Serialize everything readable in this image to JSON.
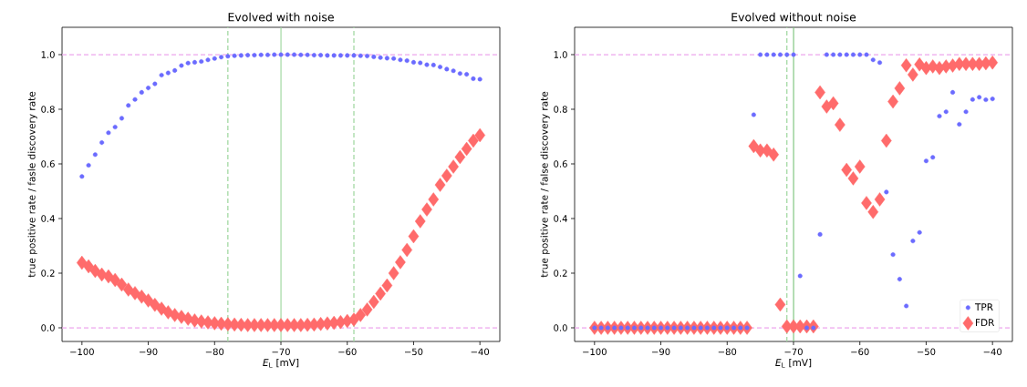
{
  "chart_data": [
    {
      "type": "scatter",
      "title": "Evolved with noise",
      "xlabel": "*E*$_{L}$ [mV]",
      "ylabel": "true positive rate / fasle discovery rate",
      "x": [
        -100,
        -99,
        -98,
        -97,
        -96,
        -95,
        -94,
        -93,
        -92,
        -91,
        -90,
        -89,
        -88,
        -87,
        -86,
        -85,
        -84,
        -83,
        -82,
        -81,
        -80,
        -79,
        -78,
        -77,
        -76,
        -75,
        -74,
        -73,
        -72,
        -71,
        -70,
        -69,
        -68,
        -67,
        -66,
        -65,
        -64,
        -63,
        -62,
        -61,
        -60,
        -59,
        -58,
        -57,
        -56,
        -55,
        -54,
        -53,
        -52,
        -51,
        -50,
        -49,
        -48,
        -47,
        -46,
        -45,
        -44,
        -43,
        -42,
        -41,
        -40
      ],
      "series": [
        {
          "color": "#6b6bff",
          "marker": "circle",
          "values": [
            0.554,
            0.595,
            0.634,
            0.678,
            0.714,
            0.735,
            0.767,
            0.814,
            0.836,
            0.862,
            0.878,
            0.893,
            0.925,
            0.933,
            0.942,
            0.96,
            0.969,
            0.972,
            0.975,
            0.981,
            0.986,
            0.991,
            0.994,
            0.996,
            0.997,
            0.998,
            0.998,
            0.999,
            0.999,
            1,
            1,
            1,
            1,
            0.999,
            0.999,
            0.998,
            0.998,
            0.997,
            0.997,
            0.997,
            0.997,
            0.997,
            0.996,
            0.995,
            0.992,
            0.989,
            0.987,
            0.986,
            0.981,
            0.978,
            0.972,
            0.97,
            0.963,
            0.962,
            0.955,
            0.947,
            0.941,
            0.931,
            0.928,
            0.912,
            0.91
          ]
        },
        {
          "color": "#ff6b6b",
          "marker": "diamond",
          "values": [
            0.238,
            0.225,
            0.208,
            0.195,
            0.188,
            0.175,
            0.158,
            0.14,
            0.127,
            0.114,
            0.1,
            0.084,
            0.07,
            0.057,
            0.047,
            0.04,
            0.033,
            0.027,
            0.023,
            0.02,
            0.017,
            0.015,
            0.013,
            0.012,
            0.011,
            0.01,
            0.01,
            0.01,
            0.01,
            0.01,
            0.01,
            0.01,
            0.01,
            0.01,
            0.011,
            0.012,
            0.014,
            0.016,
            0.018,
            0.021,
            0.025,
            0.03,
            0.047,
            0.067,
            0.095,
            0.125,
            0.155,
            0.2,
            0.24,
            0.285,
            0.335,
            0.39,
            0.433,
            0.47,
            0.523,
            0.557,
            0.59,
            0.625,
            0.655,
            0.685,
            0.705
          ]
        }
      ],
      "xlim": [
        -103,
        -37
      ],
      "ylim": [
        -0.05,
        1.1
      ],
      "xticks": [
        {
          "value": -100,
          "label": "−100"
        },
        {
          "value": -90,
          "label": "−90"
        },
        {
          "value": -80,
          "label": "−80"
        },
        {
          "value": -70,
          "label": "−70"
        },
        {
          "value": -60,
          "label": "−60"
        },
        {
          "value": -50,
          "label": "−50"
        },
        {
          "value": -40,
          "label": "−40"
        }
      ],
      "yticks": [
        {
          "value": 0,
          "label": "0.0"
        },
        {
          "value": 0.2,
          "label": "0.2"
        },
        {
          "value": 0.4,
          "label": "0.4"
        },
        {
          "value": 0.6,
          "label": "0.6"
        },
        {
          "value": 0.8,
          "label": "0.8"
        },
        {
          "value": 1,
          "label": "1.0"
        }
      ],
      "ref_lines": [
        {
          "axis": "y",
          "value": 0,
          "color": "#eeaaee",
          "line_style": "dashed"
        },
        {
          "axis": "y",
          "value": 1,
          "color": "#eeaaee",
          "line_style": "dashed"
        },
        {
          "axis": "x",
          "value": -78,
          "color": "#a3d9a3",
          "line_style": "dashed"
        },
        {
          "axis": "x",
          "value": -70,
          "color": "#a3d9a3",
          "line_style": "solid"
        },
        {
          "axis": "x",
          "value": -59,
          "color": "#a3d9a3",
          "line_style": "dashed"
        }
      ],
      "grid": false,
      "legend": false
    },
    {
      "type": "scatter",
      "title": "Evolved without noise",
      "xlabel": "*E*$_{L}$ [mV]",
      "ylabel": "true positive rate / false discovery rate",
      "x": [
        -100,
        -99,
        -98,
        -97,
        -96,
        -95,
        -94,
        -93,
        -92,
        -91,
        -90,
        -89,
        -88,
        -87,
        -86,
        -85,
        -84,
        -83,
        -82,
        -81,
        -80,
        -79,
        -78,
        -77,
        -76,
        -75,
        -74,
        -73,
        -72,
        -71,
        -70,
        -69,
        -68,
        -67,
        -66,
        -65,
        -64,
        -63,
        -62,
        -61,
        -60,
        -59,
        -58,
        -57,
        -56,
        -55,
        -54,
        -53,
        -52,
        -51,
        -50,
        -49,
        -48,
        -47,
        -46,
        -45,
        -44,
        -43,
        -42,
        -41,
        -40
      ],
      "series": [
        {
          "name": "TPR",
          "color": "#6b6bff",
          "marker": "circle",
          "values": [
            0,
            0,
            0,
            0,
            0,
            0,
            0,
            0,
            0,
            0,
            0,
            0,
            0,
            0,
            0,
            0,
            0,
            0,
            0,
            0,
            0,
            0,
            0,
            0,
            0.78,
            1,
            1,
            1,
            1,
            1,
            1,
            0.19,
            0,
            0,
            0.342,
            1,
            1,
            1,
            1,
            1,
            1,
            1,
            0.981,
            0.971,
            0.497,
            0.268,
            0.178,
            0.08,
            0.318,
            0.349,
            0.611,
            0.624,
            0.775,
            0.791,
            0.862,
            0.745,
            0.791,
            0.836,
            0.844,
            0.835,
            0.838
          ]
        },
        {
          "name": "FDR",
          "color": "#ff6b6b",
          "marker": "diamond",
          "values": [
            0,
            0,
            0,
            0,
            0,
            0,
            0,
            0,
            0,
            0,
            0,
            0,
            0,
            0,
            0,
            0,
            0,
            0,
            0,
            0,
            0,
            0,
            0,
            0,
            0.665,
            0.649,
            0.649,
            0.634,
            0.085,
            0.005,
            0.005,
            0.005,
            0.005,
            0.005,
            0.862,
            0.81,
            0.822,
            0.743,
            0.578,
            0.547,
            0.59,
            0.457,
            0.424,
            0.47,
            0.685,
            0.828,
            0.877,
            0.961,
            0.927,
            0.964,
            0.951,
            0.957,
            0.951,
            0.957,
            0.96,
            0.966,
            0.966,
            0.966,
            0.966,
            0.968,
            0.971
          ]
        }
      ],
      "xlim": [
        -103,
        -37
      ],
      "ylim": [
        -0.05,
        1.1
      ],
      "xticks": [
        {
          "value": -100,
          "label": "−100"
        },
        {
          "value": -90,
          "label": "−90"
        },
        {
          "value": -80,
          "label": "−80"
        },
        {
          "value": -70,
          "label": "−70"
        },
        {
          "value": -60,
          "label": "−60"
        },
        {
          "value": -50,
          "label": "−50"
        },
        {
          "value": -40,
          "label": "−40"
        }
      ],
      "yticks": [
        {
          "value": 0,
          "label": "0.0"
        },
        {
          "value": 0.2,
          "label": "0.2"
        },
        {
          "value": 0.4,
          "label": "0.4"
        },
        {
          "value": 0.6,
          "label": "0.6"
        },
        {
          "value": 0.8,
          "label": "0.8"
        },
        {
          "value": 1,
          "label": "1.0"
        }
      ],
      "ref_lines": [
        {
          "axis": "y",
          "value": 0,
          "color": "#eeaaee",
          "line_style": "dashed"
        },
        {
          "axis": "y",
          "value": 1,
          "color": "#eeaaee",
          "line_style": "dashed"
        },
        {
          "axis": "x",
          "value": -71,
          "color": "#a3d9a3",
          "line_style": "dashed"
        },
        {
          "axis": "x",
          "value": -70,
          "color": "#7cc47c",
          "line_style": "solid"
        }
      ],
      "grid": false,
      "legend": "bottom right"
    }
  ]
}
